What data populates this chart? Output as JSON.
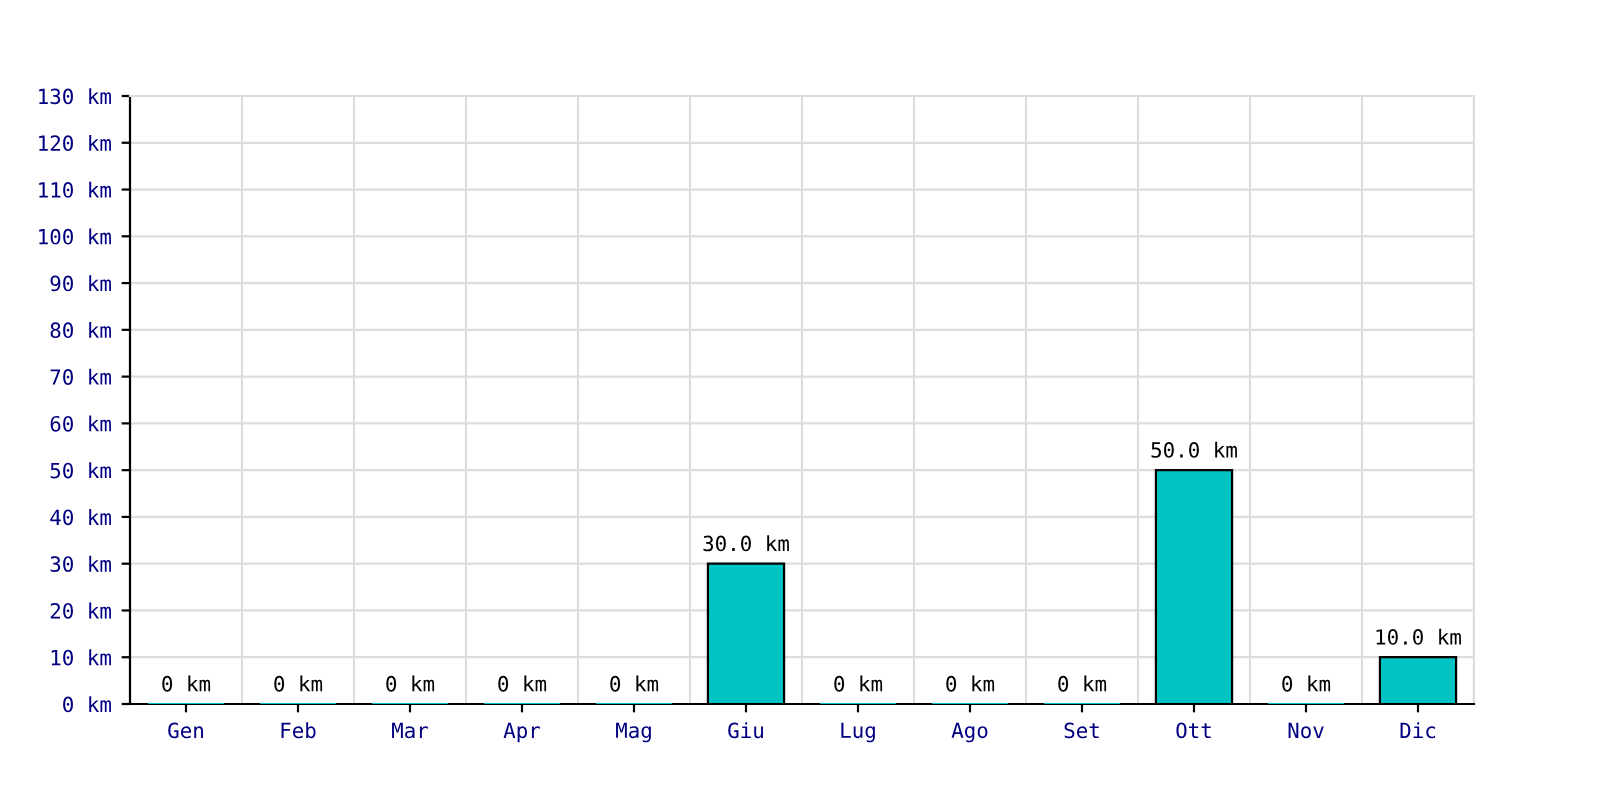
{
  "chart_data": {
    "type": "bar",
    "categories": [
      "Gen",
      "Feb",
      "Mar",
      "Apr",
      "Mag",
      "Giu",
      "Lug",
      "Ago",
      "Set",
      "Ott",
      "Nov",
      "Dic"
    ],
    "values": [
      0,
      0,
      0,
      0,
      0,
      30,
      0,
      0,
      0,
      50,
      0,
      10
    ],
    "value_labels": [
      "0 km",
      "0 km",
      "0 km",
      "0 km",
      "0 km",
      "30.0 km",
      "0 km",
      "0 km",
      "0 km",
      "50.0 km",
      "0 km",
      "10.0 km"
    ],
    "color": "#00c4c4",
    "ylim": [
      0,
      130
    ],
    "yticks": [
      {
        "value": 0,
        "label": "0 km"
      },
      {
        "value": 10,
        "label": "10 km"
      },
      {
        "value": 20,
        "label": "20 km"
      },
      {
        "value": 30,
        "label": "30 km"
      },
      {
        "value": 40,
        "label": "40 km"
      },
      {
        "value": 50,
        "label": "50 km"
      },
      {
        "value": 60,
        "label": "60 km"
      },
      {
        "value": 70,
        "label": "70 km"
      },
      {
        "value": 80,
        "label": "80 km"
      },
      {
        "value": 90,
        "label": "90 km"
      },
      {
        "value": 100,
        "label": "100 km"
      },
      {
        "value": 110,
        "label": "110 km"
      },
      {
        "value": 120,
        "label": "120 km"
      },
      {
        "value": 130,
        "label": "130 km"
      }
    ],
    "grid": true
  }
}
